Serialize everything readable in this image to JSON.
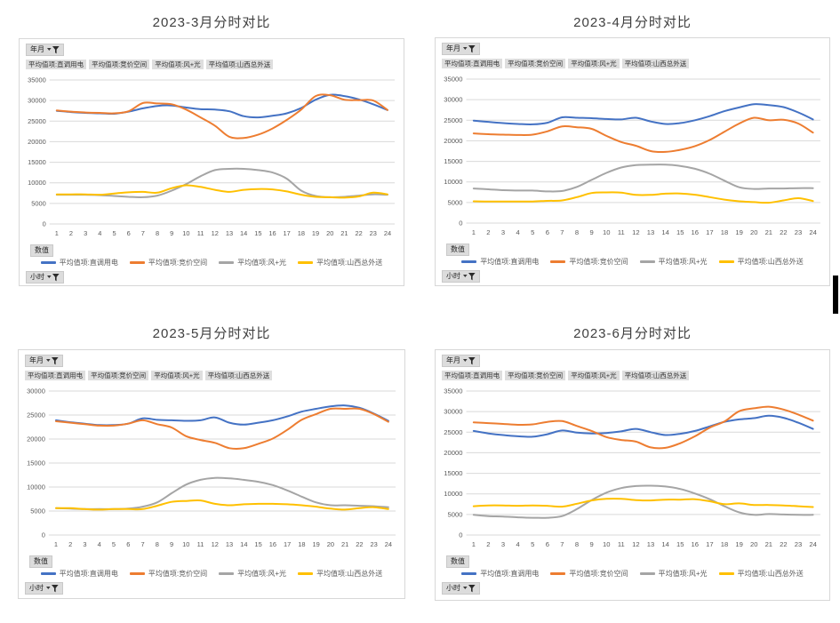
{
  "colors": {
    "blue": "#4472C4",
    "orange": "#ED7D31",
    "gray": "#A5A5A5",
    "yellow": "#FFC000",
    "grid": "#D9D9D9",
    "tick_text": "#595959",
    "title_text": "#3F3F3F"
  },
  "panels": [
    {
      "title": "2023-3月分时对比",
      "row_field": "年月",
      "value_field": "数值",
      "axis_field": "小时",
      "filters": [
        "平均值项:直调用电",
        "平均值项:竞价空间",
        "平均值项:风+光",
        "平均值项:山西总外送"
      ],
      "legend": [
        "平均值项:直调用电",
        "平均值项:竞价空间",
        "平均值项:风+光",
        "平均值项:山西总外送"
      ]
    },
    {
      "title": "2023-4月分时对比",
      "row_field": "年月",
      "value_field": "数值",
      "axis_field": "小时",
      "filters": [
        "平均值项:直调用电",
        "平均值项:竞价空间",
        "平均值项:风+光",
        "平均值项:山西总外送"
      ],
      "legend": [
        "平均值项:直调用电",
        "平均值项:竞价空间",
        "平均值项:风+光",
        "平均值项:山西总外送"
      ]
    },
    {
      "title": "2023-5月分时对比",
      "row_field": "年月",
      "value_field": "数值",
      "axis_field": "小时",
      "filters": [
        "平均值项:直调用电",
        "平均值项:竞价空间",
        "平均值项:风+光",
        "平均值项:山西总外送"
      ],
      "legend": [
        "平均值项:直调用电",
        "平均值项:竞价空间",
        "平均值项:风+光",
        "平均值项:山西总外送"
      ]
    },
    {
      "title": "2023-6月分时对比",
      "row_field": "年月",
      "value_field": "数值",
      "axis_field": "小时",
      "filters": [
        "平均值项:直调用电",
        "平均值项:竞价空间",
        "平均值项:风+光",
        "平均值项:山西总外送"
      ],
      "legend": [
        "平均值项:直调用电",
        "平均值项:竞价空间",
        "平均值项:风+光",
        "平均值项:山西总外送"
      ]
    }
  ],
  "chart_data": [
    {
      "type": "line",
      "title": "2023-3月分时对比",
      "xlabel": "小时",
      "ylabel": "数值",
      "x": [
        1,
        2,
        3,
        4,
        5,
        6,
        7,
        8,
        9,
        10,
        11,
        12,
        13,
        14,
        15,
        16,
        17,
        18,
        19,
        20,
        21,
        22,
        23,
        24
      ],
      "ylim": [
        0,
        35000
      ],
      "ytick_step": 5000,
      "grid": true,
      "legend_position": "bottom",
      "series": [
        {
          "name": "平均值项:直调用电",
          "color": "#4472C4",
          "values": [
            27500,
            27200,
            27000,
            26900,
            26800,
            27300,
            28100,
            28700,
            28800,
            28300,
            27900,
            27800,
            27400,
            26200,
            25900,
            26300,
            26900,
            28200,
            30200,
            31400,
            31100,
            30300,
            29100,
            27700
          ]
        },
        {
          "name": "平均值项:竞价空间",
          "color": "#ED7D31",
          "values": [
            27600,
            27300,
            27100,
            27000,
            26900,
            27400,
            29400,
            29300,
            29100,
            27800,
            25900,
            23900,
            21200,
            20900,
            21700,
            23200,
            25300,
            27800,
            31100,
            31300,
            30200,
            30100,
            30000,
            27700
          ]
        },
        {
          "name": "平均值项:风+光",
          "color": "#A5A5A5",
          "values": [
            7100,
            7100,
            7100,
            7000,
            6800,
            6600,
            6500,
            6900,
            8100,
            9700,
            11600,
            13100,
            13400,
            13400,
            13100,
            12500,
            11000,
            8100,
            6800,
            6500,
            6600,
            6900,
            7200,
            7100
          ]
        },
        {
          "name": "平均值项:山西总外送",
          "color": "#FFC000",
          "values": [
            7200,
            7200,
            7200,
            7100,
            7400,
            7700,
            7800,
            7600,
            8700,
            9400,
            9000,
            8300,
            7800,
            8300,
            8500,
            8400,
            7900,
            7100,
            6600,
            6500,
            6400,
            6700,
            7600,
            7200
          ]
        }
      ]
    },
    {
      "type": "line",
      "title": "2023-4月分时对比",
      "xlabel": "小时",
      "ylabel": "数值",
      "x": [
        1,
        2,
        3,
        4,
        5,
        6,
        7,
        8,
        9,
        10,
        11,
        12,
        13,
        14,
        15,
        16,
        17,
        18,
        19,
        20,
        21,
        22,
        23,
        24
      ],
      "ylim": [
        0,
        35000
      ],
      "ytick_step": 5000,
      "grid": true,
      "legend_position": "bottom",
      "series": [
        {
          "name": "平均值项:直调用电",
          "color": "#4472C4",
          "values": [
            24900,
            24600,
            24300,
            24100,
            24000,
            24400,
            25700,
            25600,
            25500,
            25300,
            25200,
            25600,
            24700,
            24100,
            24300,
            25000,
            26000,
            27200,
            28100,
            28900,
            28700,
            28200,
            26900,
            25200
          ]
        },
        {
          "name": "平均值项:竞价空间",
          "color": "#ED7D31",
          "values": [
            21800,
            21600,
            21500,
            21400,
            21500,
            22300,
            23500,
            23300,
            22900,
            21200,
            19700,
            18800,
            17500,
            17300,
            17800,
            18700,
            20200,
            22200,
            24200,
            25600,
            25000,
            25100,
            24200,
            22000
          ]
        },
        {
          "name": "平均值项:风+光",
          "color": "#A5A5A5",
          "values": [
            8400,
            8200,
            8000,
            7900,
            7900,
            7700,
            7800,
            8800,
            10500,
            12200,
            13500,
            14100,
            14200,
            14200,
            13900,
            13200,
            12000,
            10300,
            8700,
            8300,
            8400,
            8400,
            8500,
            8500
          ]
        },
        {
          "name": "平均值项:山西总外送",
          "color": "#FFC000",
          "values": [
            5300,
            5250,
            5250,
            5250,
            5250,
            5400,
            5500,
            6300,
            7300,
            7450,
            7400,
            6850,
            6850,
            7150,
            7200,
            6900,
            6300,
            5700,
            5300,
            5100,
            4950,
            5500,
            6050,
            5350
          ]
        }
      ]
    },
    {
      "type": "line",
      "title": "2023-5月分时对比",
      "xlabel": "小时",
      "ylabel": "数值",
      "x": [
        1,
        2,
        3,
        4,
        5,
        6,
        7,
        8,
        9,
        10,
        11,
        12,
        13,
        14,
        15,
        16,
        17,
        18,
        19,
        20,
        21,
        22,
        23,
        24
      ],
      "ylim": [
        0,
        30000
      ],
      "ytick_step": 5000,
      "grid": true,
      "legend_position": "bottom",
      "series": [
        {
          "name": "平均值项:直调用电",
          "color": "#4472C4",
          "values": [
            23900,
            23500,
            23200,
            22900,
            22900,
            23200,
            24300,
            24000,
            23900,
            23800,
            23900,
            24500,
            23400,
            23000,
            23400,
            23900,
            24700,
            25700,
            26300,
            26800,
            27000,
            26500,
            25300,
            23800
          ]
        },
        {
          "name": "平均值项:竞价空间",
          "color": "#ED7D31",
          "values": [
            23700,
            23400,
            23100,
            22800,
            22800,
            23200,
            23900,
            23100,
            22400,
            20600,
            19800,
            19200,
            18100,
            18100,
            19000,
            20100,
            21900,
            24000,
            25200,
            26300,
            26300,
            26300,
            25200,
            23600
          ]
        },
        {
          "name": "平均值项:风+光",
          "color": "#A5A5A5",
          "values": [
            5600,
            5500,
            5400,
            5400,
            5400,
            5500,
            5900,
            6800,
            8700,
            10500,
            11500,
            11900,
            11800,
            11500,
            11100,
            10400,
            9300,
            8000,
            6800,
            6200,
            6200,
            6100,
            6000,
            5800
          ]
        },
        {
          "name": "平均值项:山西总外送",
          "color": "#FFC000",
          "values": [
            5600,
            5600,
            5400,
            5300,
            5400,
            5400,
            5400,
            6100,
            6900,
            7100,
            7200,
            6500,
            6200,
            6400,
            6500,
            6500,
            6400,
            6200,
            5900,
            5500,
            5300,
            5600,
            5800,
            5400
          ]
        }
      ]
    },
    {
      "type": "line",
      "title": "2023-6月分时对比",
      "xlabel": "小时",
      "ylabel": "数值",
      "x": [
        1,
        2,
        3,
        4,
        5,
        6,
        7,
        8,
        9,
        10,
        11,
        12,
        13,
        14,
        15,
        16,
        17,
        18,
        19,
        20,
        21,
        22,
        23,
        24
      ],
      "ylim": [
        0,
        35000
      ],
      "ytick_step": 5000,
      "grid": true,
      "legend_position": "bottom",
      "series": [
        {
          "name": "平均值项:直调用电",
          "color": "#4472C4",
          "values": [
            25300,
            24700,
            24300,
            24000,
            23900,
            24500,
            25400,
            24900,
            24700,
            24800,
            25200,
            25800,
            25000,
            24300,
            24600,
            25300,
            26400,
            27500,
            28100,
            28400,
            29000,
            28500,
            27300,
            25800
          ]
        },
        {
          "name": "平均值项:竞价空间",
          "color": "#ED7D31",
          "values": [
            27400,
            27200,
            27000,
            26800,
            26900,
            27500,
            27700,
            26500,
            25300,
            23800,
            23100,
            22700,
            21300,
            21200,
            22300,
            24000,
            26100,
            27600,
            30100,
            30800,
            31200,
            30500,
            29300,
            27800
          ]
        },
        {
          "name": "平均值项:风+光",
          "color": "#A5A5A5",
          "values": [
            4900,
            4600,
            4500,
            4300,
            4200,
            4200,
            4600,
            6300,
            8500,
            10300,
            11400,
            11900,
            12000,
            11800,
            11200,
            10100,
            8700,
            7000,
            5500,
            4900,
            5100,
            5000,
            4900,
            4900
          ]
        },
        {
          "name": "平均值项:山西总外送",
          "color": "#FFC000",
          "values": [
            7000,
            7200,
            7200,
            7100,
            7200,
            7100,
            6900,
            7600,
            8400,
            8800,
            8800,
            8500,
            8400,
            8600,
            8600,
            8700,
            8200,
            7500,
            7700,
            7300,
            7300,
            7200,
            7000,
            6800
          ]
        }
      ]
    }
  ]
}
